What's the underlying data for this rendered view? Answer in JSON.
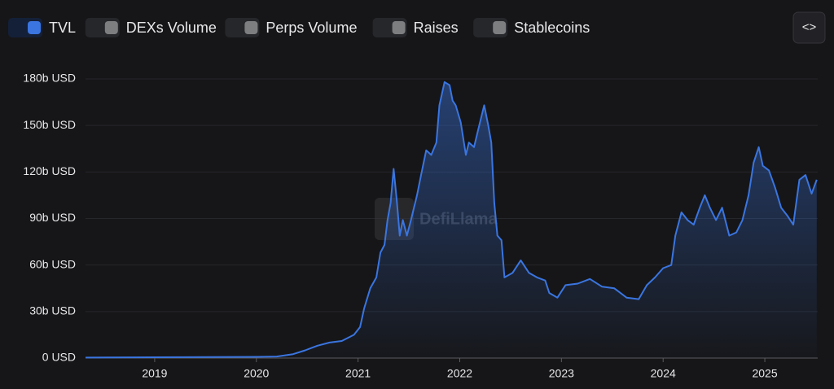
{
  "chart_data": {
    "type": "line",
    "toggles": [
      "DEXs Volume",
      "Perps Volume",
      "Raises",
      "Stablecoins"
    ],
    "watermark": "DefiLlama",
    "x": [
      2018.32,
      2019,
      2020,
      2020.2,
      2020.36,
      2020.48,
      2020.6,
      2020.72,
      2020.84,
      2020.96,
      2021.02,
      2021.06,
      2021.12,
      2021.18,
      2021.22,
      2021.26,
      2021.29,
      2021.32,
      2021.35,
      2021.38,
      2021.41,
      2021.44,
      2021.48,
      2021.52,
      2021.58,
      2021.62,
      2021.67,
      2021.72,
      2021.77,
      2021.8,
      2021.85,
      2021.9,
      2021.93,
      2021.96,
      2022.01,
      2022.06,
      2022.09,
      2022.14,
      2022.18,
      2022.24,
      2022.28,
      2022.31,
      2022.34,
      2022.37,
      2022.41,
      2022.44,
      2022.52,
      2022.6,
      2022.68,
      2022.76,
      2022.84,
      2022.88,
      2022.96,
      2023.04,
      2023.16,
      2023.28,
      2023.4,
      2023.52,
      2023.64,
      2023.76,
      2023.84,
      2023.92,
      2024.0,
      2024.08,
      2024.12,
      2024.18,
      2024.24,
      2024.3,
      2024.36,
      2024.41,
      2024.46,
      2024.52,
      2024.58,
      2024.65,
      2024.72,
      2024.78,
      2024.84,
      2024.89,
      2024.94,
      2024.98,
      2025.04,
      2025.1,
      2025.16,
      2025.22,
      2025.28,
      2025.34,
      2025.4,
      2025.46,
      2025.51
    ],
    "series": [
      {
        "name": "TVL",
        "color": "#3a75e0",
        "values": [
          0.3,
          0.5,
          0.8,
          1,
          2.5,
          5,
          8,
          10,
          11,
          15,
          20,
          32,
          45,
          52,
          68,
          73,
          89,
          100,
          122,
          102,
          79,
          89,
          79,
          89,
          105,
          118,
          134,
          131,
          139,
          163,
          178,
          176,
          166,
          163,
          152,
          131,
          139,
          136,
          147,
          163,
          150,
          139,
          100,
          79,
          76,
          52,
          55,
          63,
          55,
          52,
          50,
          42,
          39,
          47,
          48,
          51,
          46,
          45,
          39,
          38,
          47,
          52,
          58,
          60,
          79,
          94,
          89,
          86,
          97,
          105,
          97,
          89,
          97,
          79,
          81,
          89,
          105,
          126,
          136,
          124,
          121,
          110,
          97,
          92,
          86,
          115,
          118,
          106,
          115
        ]
      }
    ],
    "xlim": [
      2018.32,
      2025.52
    ],
    "xticks": [
      2019,
      2020,
      2021,
      2022,
      2023,
      2024,
      2025
    ],
    "ylim": [
      0,
      180
    ],
    "yticks": [
      {
        "value": 0,
        "label": "0 USD"
      },
      {
        "value": 30,
        "label": "30b USD"
      },
      {
        "value": 60,
        "label": "60b USD"
      },
      {
        "value": 90,
        "label": "90b USD"
      },
      {
        "value": 120,
        "label": "120b USD"
      },
      {
        "value": 150,
        "label": "150b USD"
      },
      {
        "value": 180,
        "label": "180b USD"
      }
    ],
    "grid": true
  }
}
